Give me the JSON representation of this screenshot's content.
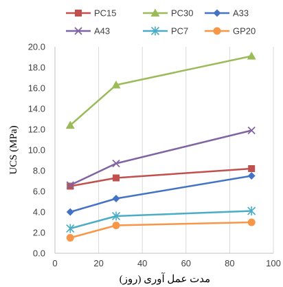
{
  "chart_data": {
    "type": "line",
    "title": "",
    "xlabel": "مدت عمل آوری (روز)",
    "ylabel": "UCS (MPa)",
    "xlim": [
      0,
      100
    ],
    "ylim": [
      0,
      20
    ],
    "xticks": [
      "0",
      "20",
      "40",
      "60",
      "80",
      "100"
    ],
    "yticks": [
      "0.0",
      "2.0",
      "4.0",
      "6.0",
      "8.0",
      "10.0",
      "12.0",
      "14.0",
      "16.0",
      "18.0",
      "20.0"
    ],
    "grid": "vertical",
    "legend_position": "top",
    "series": [
      {
        "name": "PC15",
        "color": "#c0504d",
        "marker": "square",
        "points": [
          {
            "x": 7,
            "y": 6.5
          },
          {
            "x": 28,
            "y": 7.3
          },
          {
            "x": 90,
            "y": 8.2
          }
        ]
      },
      {
        "name": "PC30",
        "color": "#9bbb59",
        "marker": "triangle",
        "points": [
          {
            "x": 7,
            "y": 12.4
          },
          {
            "x": 28,
            "y": 16.3
          },
          {
            "x": 90,
            "y": 19.1
          }
        ]
      },
      {
        "name": "A33",
        "color": "#4472c4",
        "marker": "diamond",
        "points": [
          {
            "x": 7,
            "y": 4.0
          },
          {
            "x": 28,
            "y": 5.3
          },
          {
            "x": 90,
            "y": 7.5
          }
        ]
      },
      {
        "name": "A43",
        "color": "#8064a2",
        "marker": "x",
        "points": [
          {
            "x": 7,
            "y": 6.6
          },
          {
            "x": 28,
            "y": 8.7
          },
          {
            "x": 90,
            "y": 11.9
          }
        ]
      },
      {
        "name": "PC7",
        "color": "#4bacc6",
        "marker": "star",
        "points": [
          {
            "x": 7,
            "y": 2.4
          },
          {
            "x": 28,
            "y": 3.6
          },
          {
            "x": 90,
            "y": 4.1
          }
        ]
      },
      {
        "name": "GP20",
        "color": "#f79646",
        "marker": "circle",
        "points": [
          {
            "x": 7,
            "y": 1.5
          },
          {
            "x": 28,
            "y": 2.7
          },
          {
            "x": 90,
            "y": 3.0
          }
        ]
      }
    ]
  }
}
